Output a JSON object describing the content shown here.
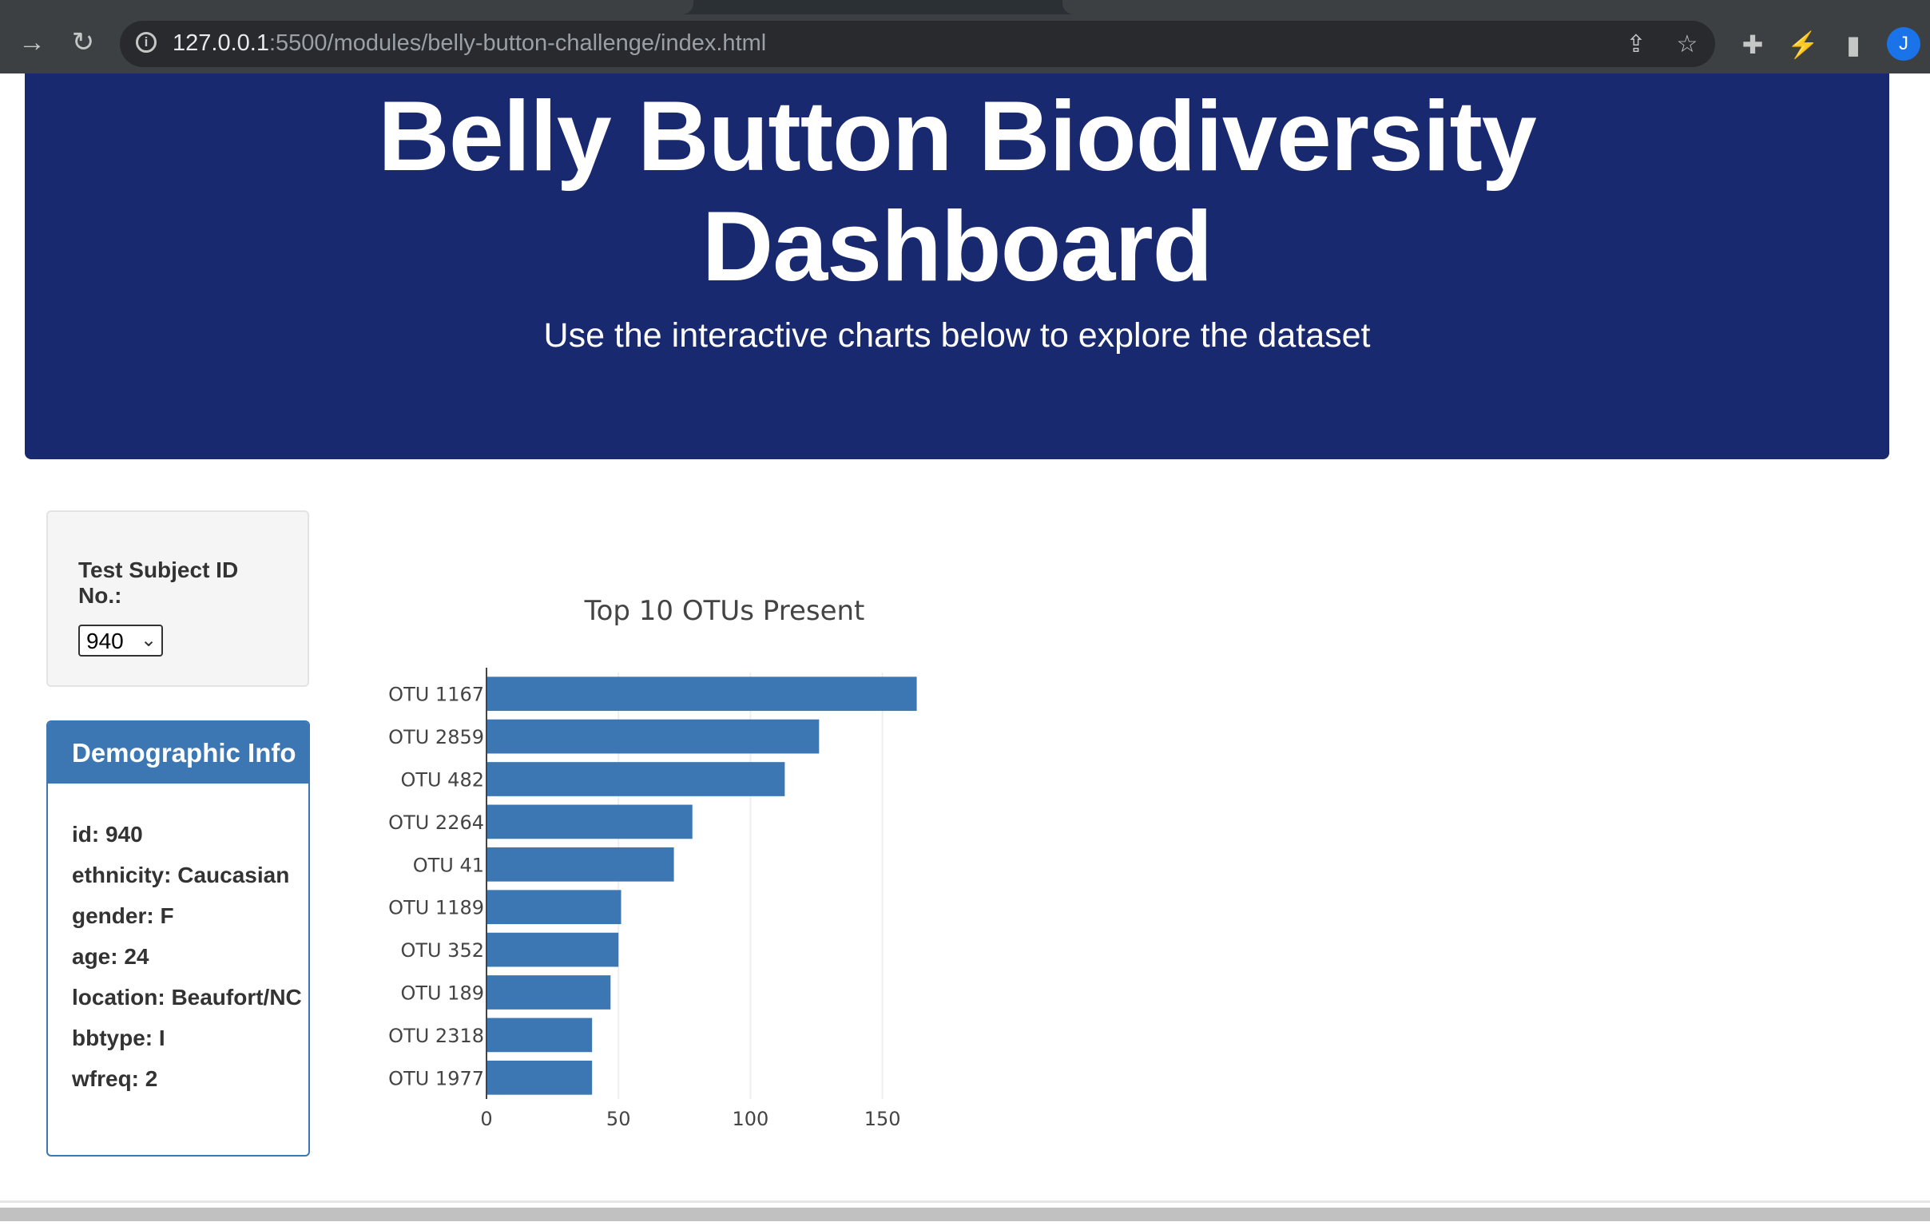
{
  "browser": {
    "url_host": "127.0.0.1",
    "url_path": ":5500/modules/belly-button-challenge/index.html",
    "profile_initial": "J",
    "icons": {
      "forward": "arrow-right-icon",
      "reload": "reload-icon",
      "info": "info-icon",
      "share": "share-icon",
      "bookmark": "star-icon",
      "extensions": "puzzle-icon",
      "performance": "lightning-icon",
      "side_panel": "side-panel-icon"
    }
  },
  "header": {
    "title_line1": "Belly Button Biodiversity",
    "title_line2": "Dashboard",
    "subtitle": "Use the interactive charts below to explore the dataset"
  },
  "selector": {
    "label": "Test Subject ID No.:",
    "selected": "940"
  },
  "demographics": {
    "heading": "Demographic Info",
    "rows": [
      "id: 940",
      "ethnicity: Caucasian",
      "gender: F",
      "age: 24",
      "location: Beaufort/NC",
      "bbtype: I",
      "wfreq: 2"
    ]
  },
  "colors": {
    "header_bg": "#18296f",
    "bar": "#3c77b4",
    "panel": "#3c77b4"
  },
  "chart_data": {
    "type": "bar",
    "orientation": "horizontal",
    "title": "Top 10 OTUs Present",
    "categories": [
      "OTU 1167",
      "OTU 2859",
      "OTU 482",
      "OTU 2264",
      "OTU 41",
      "OTU 1189",
      "OTU 352",
      "OTU 189",
      "OTU 2318",
      "OTU 1977"
    ],
    "values": [
      163,
      126,
      113,
      78,
      71,
      51,
      50,
      47,
      40,
      40
    ],
    "xticks": [
      0,
      50,
      100,
      150
    ],
    "xlim": [
      0,
      171.6
    ],
    "grid": true
  }
}
